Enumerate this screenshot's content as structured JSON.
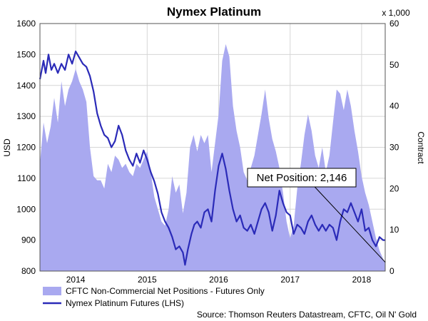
{
  "chart_data": {
    "type": "line",
    "title": "Nymex Platinum",
    "ylabel_left": "USD",
    "ylabel_right": "Contract",
    "right_axis_multiplier": "x 1,000",
    "ylim_left": [
      800,
      1600
    ],
    "ylim_right": [
      0,
      60
    ],
    "yticks_left": [
      "800",
      "900",
      "1000",
      "1100",
      "1200",
      "1300",
      "1400",
      "1500",
      "1600"
    ],
    "yticks_right": [
      "0",
      "10",
      "20",
      "30",
      "40",
      "50",
      "60"
    ],
    "xlim": [
      2013.5,
      2018.33
    ],
    "xticks": [
      {
        "label": "2014",
        "x": 2014.0
      },
      {
        "label": "2015",
        "x": 2015.0
      },
      {
        "label": "2016",
        "x": 2016.0
      },
      {
        "label": "2017",
        "x": 2017.0
      },
      {
        "label": "2018",
        "x": 2018.0
      }
    ],
    "grid": true,
    "legend_position": "bottom-left",
    "series": [
      {
        "name": "CFTC Non-Commercial Net Positions - Futures Only",
        "type": "area",
        "axis": "right",
        "color": "#a9a9f0",
        "points": [
          [
            2013.5,
            26
          ],
          [
            2013.55,
            36
          ],
          [
            2013.6,
            31
          ],
          [
            2013.65,
            35
          ],
          [
            2013.7,
            42
          ],
          [
            2013.75,
            36
          ],
          [
            2013.8,
            46
          ],
          [
            2013.85,
            40
          ],
          [
            2013.9,
            44
          ],
          [
            2013.95,
            46
          ],
          [
            2014.0,
            49
          ],
          [
            2014.05,
            46
          ],
          [
            2014.1,
            44
          ],
          [
            2014.15,
            41
          ],
          [
            2014.2,
            30
          ],
          [
            2014.25,
            23
          ],
          [
            2014.3,
            22
          ],
          [
            2014.35,
            22
          ],
          [
            2014.4,
            20
          ],
          [
            2014.45,
            26
          ],
          [
            2014.5,
            24
          ],
          [
            2014.55,
            28
          ],
          [
            2014.6,
            27
          ],
          [
            2014.65,
            25
          ],
          [
            2014.7,
            26
          ],
          [
            2014.75,
            24
          ],
          [
            2014.8,
            23
          ],
          [
            2014.85,
            26
          ],
          [
            2014.9,
            25
          ],
          [
            2014.95,
            27
          ],
          [
            2015.0,
            29
          ],
          [
            2015.05,
            24
          ],
          [
            2015.1,
            18
          ],
          [
            2015.15,
            15
          ],
          [
            2015.2,
            12
          ],
          [
            2015.25,
            11
          ],
          [
            2015.3,
            15
          ],
          [
            2015.35,
            23
          ],
          [
            2015.4,
            19
          ],
          [
            2015.45,
            21
          ],
          [
            2015.5,
            14
          ],
          [
            2015.55,
            19
          ],
          [
            2015.6,
            30
          ],
          [
            2015.65,
            33
          ],
          [
            2015.7,
            29
          ],
          [
            2015.75,
            33
          ],
          [
            2015.8,
            31
          ],
          [
            2015.85,
            33
          ],
          [
            2015.9,
            24
          ],
          [
            2015.95,
            31
          ],
          [
            2016.0,
            38
          ],
          [
            2016.05,
            51
          ],
          [
            2016.1,
            55
          ],
          [
            2016.15,
            52
          ],
          [
            2016.2,
            40
          ],
          [
            2016.25,
            34
          ],
          [
            2016.3,
            30
          ],
          [
            2016.35,
            24
          ],
          [
            2016.4,
            22
          ],
          [
            2016.45,
            25
          ],
          [
            2016.5,
            28
          ],
          [
            2016.55,
            33
          ],
          [
            2016.6,
            38
          ],
          [
            2016.65,
            44
          ],
          [
            2016.7,
            37
          ],
          [
            2016.75,
            32
          ],
          [
            2016.8,
            29
          ],
          [
            2016.85,
            25
          ],
          [
            2016.9,
            19
          ],
          [
            2016.95,
            12
          ],
          [
            2017.0,
            8
          ],
          [
            2017.05,
            11
          ],
          [
            2017.1,
            20
          ],
          [
            2017.15,
            26
          ],
          [
            2017.2,
            33
          ],
          [
            2017.25,
            38
          ],
          [
            2017.3,
            34
          ],
          [
            2017.35,
            28
          ],
          [
            2017.4,
            25
          ],
          [
            2017.45,
            30
          ],
          [
            2017.5,
            24
          ],
          [
            2017.55,
            28
          ],
          [
            2017.6,
            36
          ],
          [
            2017.65,
            44
          ],
          [
            2017.7,
            43
          ],
          [
            2017.75,
            39
          ],
          [
            2017.8,
            44
          ],
          [
            2017.85,
            40
          ],
          [
            2017.9,
            34
          ],
          [
            2017.95,
            29
          ],
          [
            2018.0,
            23
          ],
          [
            2018.05,
            19
          ],
          [
            2018.1,
            16
          ],
          [
            2018.15,
            12
          ],
          [
            2018.2,
            8
          ],
          [
            2018.25,
            5
          ],
          [
            2018.3,
            3
          ],
          [
            2018.33,
            2.146
          ]
        ]
      },
      {
        "name": "Nymex Platinum Futures (LHS)",
        "type": "line",
        "axis": "left",
        "color": "#2b2bb8",
        "points": [
          [
            2013.5,
            1420
          ],
          [
            2013.55,
            1480
          ],
          [
            2013.58,
            1440
          ],
          [
            2013.62,
            1500
          ],
          [
            2013.66,
            1450
          ],
          [
            2013.7,
            1470
          ],
          [
            2013.75,
            1440
          ],
          [
            2013.8,
            1470
          ],
          [
            2013.85,
            1450
          ],
          [
            2013.9,
            1500
          ],
          [
            2013.95,
            1470
          ],
          [
            2014.0,
            1510
          ],
          [
            2014.05,
            1490
          ],
          [
            2014.1,
            1470
          ],
          [
            2014.15,
            1460
          ],
          [
            2014.2,
            1430
          ],
          [
            2014.25,
            1380
          ],
          [
            2014.3,
            1310
          ],
          [
            2014.35,
            1270
          ],
          [
            2014.4,
            1240
          ],
          [
            2014.45,
            1230
          ],
          [
            2014.5,
            1200
          ],
          [
            2014.55,
            1220
          ],
          [
            2014.6,
            1270
          ],
          [
            2014.65,
            1240
          ],
          [
            2014.7,
            1190
          ],
          [
            2014.75,
            1160
          ],
          [
            2014.8,
            1140
          ],
          [
            2014.85,
            1180
          ],
          [
            2014.9,
            1150
          ],
          [
            2014.95,
            1190
          ],
          [
            2015.0,
            1160
          ],
          [
            2015.05,
            1120
          ],
          [
            2015.1,
            1090
          ],
          [
            2015.15,
            1050
          ],
          [
            2015.2,
            990
          ],
          [
            2015.25,
            960
          ],
          [
            2015.3,
            940
          ],
          [
            2015.35,
            910
          ],
          [
            2015.4,
            870
          ],
          [
            2015.45,
            880
          ],
          [
            2015.5,
            860
          ],
          [
            2015.53,
            820
          ],
          [
            2015.57,
            870
          ],
          [
            2015.62,
            920
          ],
          [
            2015.66,
            950
          ],
          [
            2015.7,
            960
          ],
          [
            2015.75,
            940
          ],
          [
            2015.8,
            990
          ],
          [
            2015.85,
            1000
          ],
          [
            2015.9,
            960
          ],
          [
            2015.95,
            1060
          ],
          [
            2016.0,
            1140
          ],
          [
            2016.05,
            1180
          ],
          [
            2016.1,
            1130
          ],
          [
            2016.15,
            1060
          ],
          [
            2016.2,
            1000
          ],
          [
            2016.25,
            960
          ],
          [
            2016.3,
            980
          ],
          [
            2016.35,
            940
          ],
          [
            2016.4,
            930
          ],
          [
            2016.45,
            950
          ],
          [
            2016.5,
            920
          ],
          [
            2016.55,
            960
          ],
          [
            2016.6,
            1000
          ],
          [
            2016.65,
            1020
          ],
          [
            2016.7,
            990
          ],
          [
            2016.75,
            930
          ],
          [
            2016.8,
            980
          ],
          [
            2016.85,
            1060
          ],
          [
            2016.9,
            1020
          ],
          [
            2016.95,
            990
          ],
          [
            2017.0,
            980
          ],
          [
            2017.05,
            920
          ],
          [
            2017.1,
            950
          ],
          [
            2017.15,
            940
          ],
          [
            2017.2,
            920
          ],
          [
            2017.25,
            960
          ],
          [
            2017.3,
            980
          ],
          [
            2017.35,
            950
          ],
          [
            2017.4,
            930
          ],
          [
            2017.45,
            950
          ],
          [
            2017.5,
            930
          ],
          [
            2017.55,
            950
          ],
          [
            2017.6,
            940
          ],
          [
            2017.65,
            900
          ],
          [
            2017.7,
            960
          ],
          [
            2017.75,
            1000
          ],
          [
            2017.8,
            990
          ],
          [
            2017.85,
            1020
          ],
          [
            2017.9,
            990
          ],
          [
            2017.95,
            960
          ],
          [
            2018.0,
            1000
          ],
          [
            2018.05,
            930
          ],
          [
            2018.1,
            940
          ],
          [
            2018.15,
            900
          ],
          [
            2018.2,
            880
          ],
          [
            2018.25,
            910
          ],
          [
            2018.3,
            900
          ],
          [
            2018.33,
            900
          ]
        ]
      }
    ],
    "annotation": {
      "text": "Net Position: 2,146",
      "target": [
        2018.33,
        2.146
      ],
      "axis": "right"
    },
    "source": "Source: Thomson Reuters Datastream, CFTC, Oil N' Gold"
  }
}
